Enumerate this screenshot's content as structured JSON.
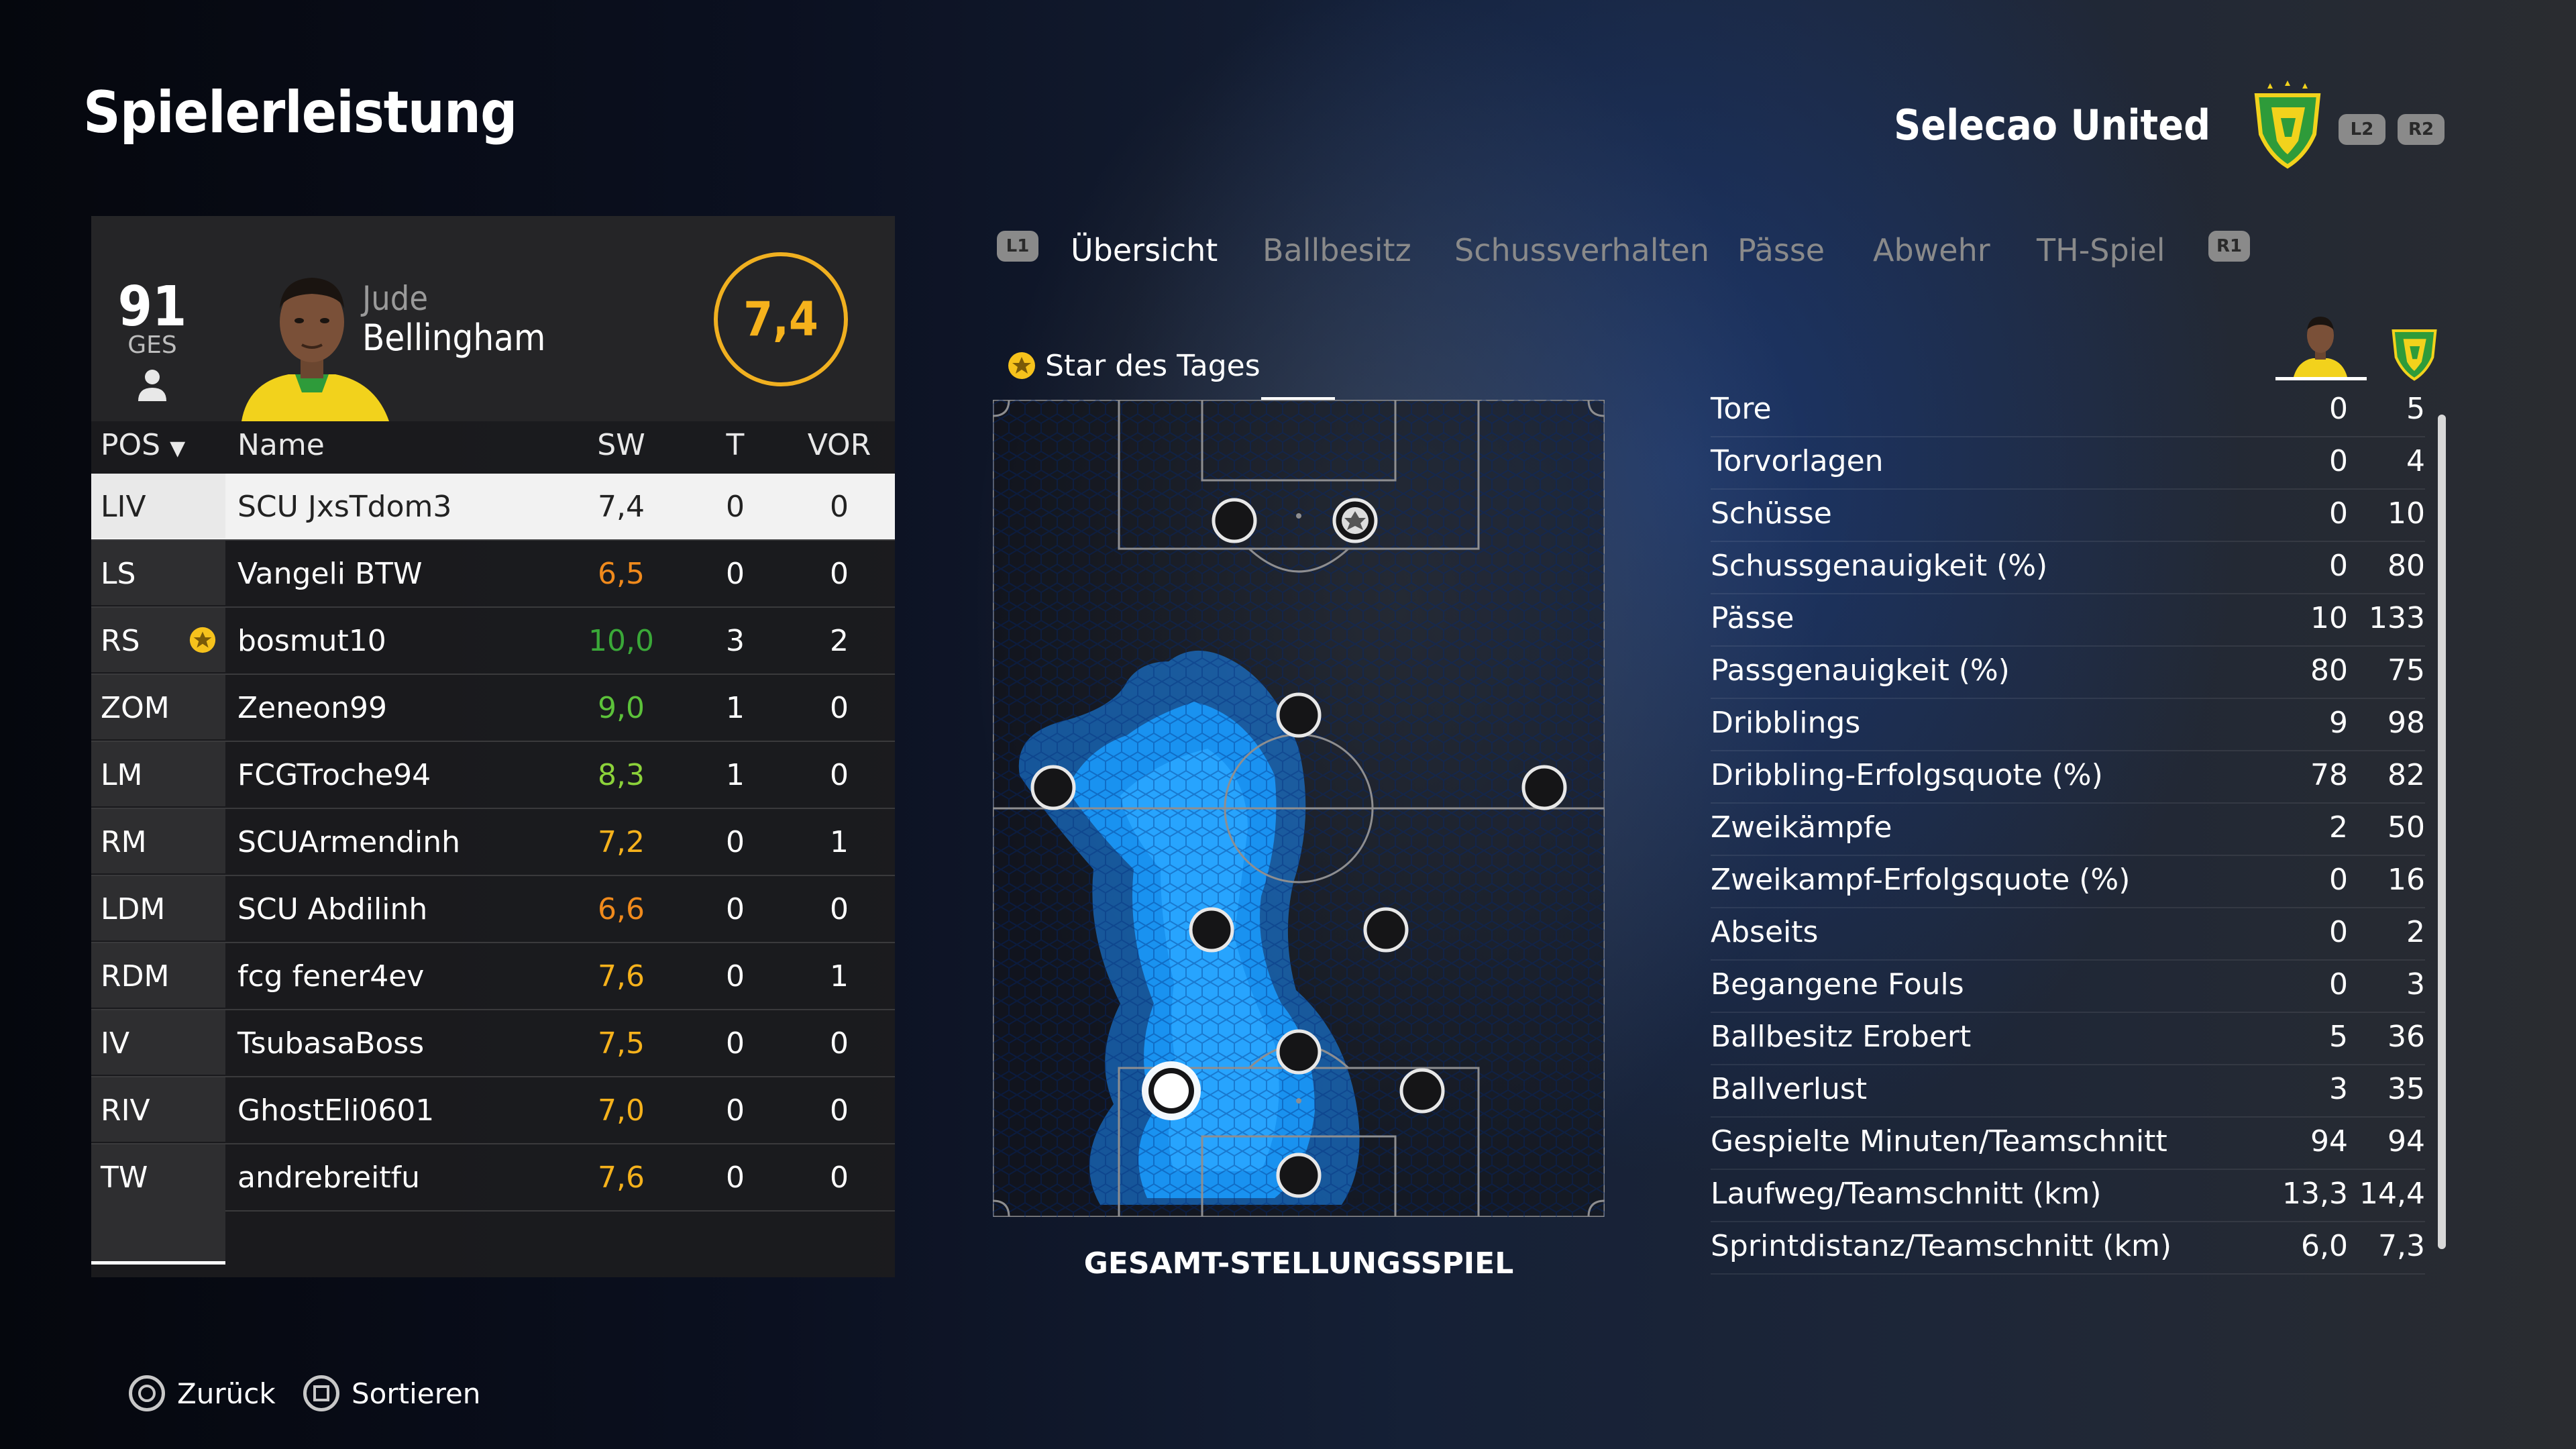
{
  "page_title": "Spielerleistung",
  "team": {
    "name": "Selecao United",
    "l2": "L2",
    "r2": "R2"
  },
  "player": {
    "overall": "91",
    "overall_label": "GES",
    "first_name": "Jude",
    "last_name": "Bellingham",
    "rating": "7,4"
  },
  "table": {
    "headers": {
      "pos": "POS",
      "name": "Name",
      "sw": "SW",
      "t": "T",
      "vor": "VOR"
    },
    "rows": [
      {
        "pos": "LIV",
        "name": "SCU JxsTdom3",
        "sw": "7,4",
        "t": "0",
        "vor": "0",
        "sw_color": "#222222",
        "star": false,
        "selected": true
      },
      {
        "pos": "LS",
        "name": "Vangeli BTW",
        "sw": "6,5",
        "t": "0",
        "vor": "0",
        "sw_color": "#f08a1c",
        "star": false
      },
      {
        "pos": "RS",
        "name": "bosmut10",
        "sw": "10,0",
        "t": "3",
        "vor": "2",
        "sw_color": "#3aa838",
        "star": true
      },
      {
        "pos": "ZOM",
        "name": "Zeneon99",
        "sw": "9,0",
        "t": "1",
        "vor": "0",
        "sw_color": "#5cc23a",
        "star": false
      },
      {
        "pos": "LM",
        "name": "FCGTroche94",
        "sw": "8,3",
        "t": "1",
        "vor": "0",
        "sw_color": "#8cd23a",
        "star": false
      },
      {
        "pos": "RM",
        "name": "SCUArmendinh",
        "sw": "7,2",
        "t": "0",
        "vor": "1",
        "sw_color": "#f6b21c",
        "star": false
      },
      {
        "pos": "LDM",
        "name": "SCU Abdilinh",
        "sw": "6,6",
        "t": "0",
        "vor": "0",
        "sw_color": "#f08a1c",
        "star": false
      },
      {
        "pos": "RDM",
        "name": "fcg fener4ev",
        "sw": "7,6",
        "t": "0",
        "vor": "1",
        "sw_color": "#f6b21c",
        "star": false
      },
      {
        "pos": "IV",
        "name": "TsubasaBoss",
        "sw": "7,5",
        "t": "0",
        "vor": "0",
        "sw_color": "#f6b21c",
        "star": false
      },
      {
        "pos": "RIV",
        "name": "GhostEli0601",
        "sw": "7,0",
        "t": "0",
        "vor": "0",
        "sw_color": "#f6b21c",
        "star": false
      },
      {
        "pos": "TW",
        "name": "andrebreitfu",
        "sw": "7,6",
        "t": "0",
        "vor": "0",
        "sw_color": "#f6b21c",
        "star": false
      }
    ]
  },
  "tabs": {
    "l1": "L1",
    "r1": "R1",
    "items": [
      "Übersicht",
      "Ballbesitz",
      "Schussverhalten",
      "Pässe",
      "Abwehr",
      "TH-Spiel"
    ],
    "active": "Übersicht"
  },
  "star_of_day": "Star des Tages",
  "pitch_label": "GESAMT-STELLUNGSSPIEL",
  "stats": [
    {
      "label": "Tore",
      "player": "0",
      "team": "5"
    },
    {
      "label": "Torvorlagen",
      "player": "0",
      "team": "4"
    },
    {
      "label": "Schüsse",
      "player": "0",
      "team": "10"
    },
    {
      "label": "Schussgenauigkeit (%)",
      "player": "0",
      "team": "80"
    },
    {
      "label": "Pässe",
      "player": "10",
      "team": "133"
    },
    {
      "label": "Passgenauigkeit (%)",
      "player": "80",
      "team": "75"
    },
    {
      "label": "Dribblings",
      "player": "9",
      "team": "98"
    },
    {
      "label": "Dribbling-Erfolgsquote (%)",
      "player": "78",
      "team": "82"
    },
    {
      "label": "Zweikämpfe",
      "player": "2",
      "team": "50"
    },
    {
      "label": "Zweikampf-Erfolgsquote (%)",
      "player": "0",
      "team": "16"
    },
    {
      "label": "Abseits",
      "player": "0",
      "team": "2"
    },
    {
      "label": "Begangene Fouls",
      "player": "0",
      "team": "3"
    },
    {
      "label": "Ballbesitz Erobert",
      "player": "5",
      "team": "36"
    },
    {
      "label": "Ballverlust",
      "player": "3",
      "team": "35"
    },
    {
      "label": "Gespielte Minuten/Teamschnitt",
      "player": "94",
      "team": "94"
    },
    {
      "label": "Laufweg/Teamschnitt (km)",
      "player": "13,3",
      "team": "14,4"
    },
    {
      "label": "Sprintdistanz/Teamschnitt (km)",
      "player": "6,0",
      "team": "7,3"
    }
  ],
  "footer": {
    "back": "Zurück",
    "sort": "Sortieren"
  },
  "colors": {
    "accent": "#f6b21c",
    "heatmap": "#1a8cff",
    "team_green": "#2e9b3a",
    "team_yellow": "#f2d21c"
  }
}
